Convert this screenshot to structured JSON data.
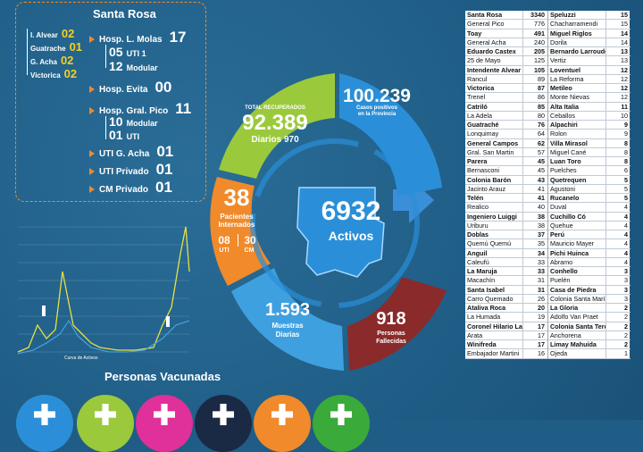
{
  "hospital_box": {
    "title": "Santa Rosa",
    "municipalities": [
      {
        "name": "I. Alvear",
        "count": "02"
      },
      {
        "name": "Guatrache",
        "count": "01"
      },
      {
        "name": "G. Acha",
        "count": "02"
      },
      {
        "name": "Victorica",
        "count": "02"
      }
    ],
    "molas": {
      "label": "Hosp. L. Molas",
      "count": "17",
      "uti": "05",
      "uti_label": "UTI 1",
      "modular": "12",
      "modular_label": "Modular"
    },
    "evita": {
      "label": "Hosp. Evita",
      "count": "00"
    },
    "pico": {
      "label": "Hosp. Gral. Pico",
      "count": "11",
      "modular": "10",
      "modular_label": "Modular",
      "uti": "01",
      "uti_label": "UTI"
    },
    "uti_acha": {
      "label": "UTI G. Acha",
      "count": "01"
    },
    "uti_privado": {
      "label": "UTI Privado",
      "count": "01"
    },
    "cm_privado": {
      "label": "CM Privado",
      "count": "01"
    }
  },
  "chart": {
    "label": "Curva de Activos"
  },
  "center": {
    "value": "6932",
    "label": "Activos"
  },
  "segments": {
    "recuperados": {
      "label": "TOTAL RECUPERADOS",
      "value": "92.389",
      "daily_label": "Diarios",
      "daily_value": "970"
    },
    "positivos": {
      "value": "100.239",
      "label1": "Casos positivos",
      "label2": "en la Provincia"
    },
    "internados": {
      "value": "38",
      "label1": "Pacientes",
      "label2": "Internados",
      "uti_value": "08",
      "uti_label": "UTI",
      "cm_value": "30",
      "cm_label": "CM"
    },
    "muestras": {
      "value": "1.593",
      "label1": "Muestras",
      "label2": "Diarias"
    },
    "fallecidos": {
      "value": "918",
      "label1": "Personas",
      "label2": "Fallecidas"
    }
  },
  "vaccinated": {
    "title": "Personas Vacunadas"
  },
  "colors": {
    "green": "#9bc93c",
    "blue": "#2a8fd8",
    "orange": "#f08a2a",
    "lightblue": "#3fa0e0",
    "red": "#8b2a2a",
    "background": "#1f5d86"
  },
  "table": {
    "left": [
      {
        "name": "Santa Rosa",
        "value": "3340",
        "bold": true
      },
      {
        "name": "General Pico",
        "value": "776"
      },
      {
        "name": "Toay",
        "value": "491",
        "bold": true
      },
      {
        "name": "General Acha",
        "value": "240"
      },
      {
        "name": "Eduardo Castex",
        "value": "205",
        "bold": true
      },
      {
        "name": "25 de Mayo",
        "value": "125"
      },
      {
        "name": "Intendente Alvear",
        "value": "105",
        "bold": true
      },
      {
        "name": "Rancul",
        "value": "89"
      },
      {
        "name": "Victorica",
        "value": "87",
        "bold": true
      },
      {
        "name": "Trenel",
        "value": "86"
      },
      {
        "name": "Catriló",
        "value": "85",
        "bold": true
      },
      {
        "name": "La Adela",
        "value": "80"
      },
      {
        "name": "Guatraché",
        "value": "76",
        "bold": true
      },
      {
        "name": "Lonquimay",
        "value": "64"
      },
      {
        "name": "General Campos",
        "value": "62",
        "bold": true
      },
      {
        "name": "Gral. San Martin",
        "value": "57"
      },
      {
        "name": "Parera",
        "value": "45",
        "bold": true
      },
      {
        "name": "Bernasconi",
        "value": "45"
      },
      {
        "name": "Colonia Barón",
        "value": "43",
        "bold": true
      },
      {
        "name": "Jacinto Arauz",
        "value": "41"
      },
      {
        "name": "Telén",
        "value": "41",
        "bold": true
      },
      {
        "name": "Realico",
        "value": "40"
      },
      {
        "name": "Ingeniero Luiggi",
        "value": "38",
        "bold": true
      },
      {
        "name": "Uriburu",
        "value": "38"
      },
      {
        "name": "Doblas",
        "value": "37",
        "bold": true
      },
      {
        "name": "Quemú Quemú",
        "value": "35"
      },
      {
        "name": "Anguil",
        "value": "34",
        "bold": true
      },
      {
        "name": "Caleufú",
        "value": "33"
      },
      {
        "name": "La Maruja",
        "value": "33",
        "bold": true
      },
      {
        "name": "Macachín",
        "value": "31"
      },
      {
        "name": "Santa Isabel",
        "value": "31",
        "bold": true
      },
      {
        "name": "Carro Quemado",
        "value": "26"
      },
      {
        "name": "Ataliva Roca",
        "value": "20",
        "bold": true
      },
      {
        "name": "La Humada",
        "value": "19"
      },
      {
        "name": "Coronel Hilario Lagos",
        "value": "17",
        "bold": true
      },
      {
        "name": "Arata",
        "value": "17"
      },
      {
        "name": "Winifreda",
        "value": "17",
        "bold": true
      },
      {
        "name": "Embajador Martini",
        "value": "16"
      }
    ],
    "right": [
      {
        "name": "Speluzzi",
        "value": "15",
        "bold": true
      },
      {
        "name": "Chacharramendi",
        "value": "15"
      },
      {
        "name": "Miguel Riglos",
        "value": "14",
        "bold": true
      },
      {
        "name": "Dorila",
        "value": "14"
      },
      {
        "name": "Bernardo Larroudé",
        "value": "13",
        "bold": true
      },
      {
        "name": "Vertiz",
        "value": "13"
      },
      {
        "name": "Loventuel",
        "value": "12",
        "bold": true
      },
      {
        "name": "La Reforma",
        "value": "12"
      },
      {
        "name": "Metileo",
        "value": "12",
        "bold": true
      },
      {
        "name": "Monte Nievas",
        "value": "12"
      },
      {
        "name": "Alta Italia",
        "value": "11",
        "bold": true
      },
      {
        "name": "Ceballos",
        "value": "10"
      },
      {
        "name": "Alpachiri",
        "value": "9",
        "bold": true
      },
      {
        "name": "Rolon",
        "value": "9"
      },
      {
        "name": "Villa Mirasol",
        "value": "8",
        "bold": true
      },
      {
        "name": "Miguel Cané",
        "value": "8"
      },
      {
        "name": "Luan Toro",
        "value": "8",
        "bold": true
      },
      {
        "name": "Puelches",
        "value": "6"
      },
      {
        "name": "Quetrequen",
        "value": "5",
        "bold": true
      },
      {
        "name": "Agustoni",
        "value": "5"
      },
      {
        "name": "Rucanelo",
        "value": "5",
        "bold": true
      },
      {
        "name": "Duval",
        "value": "4"
      },
      {
        "name": "Cuchillo Có",
        "value": "4",
        "bold": true
      },
      {
        "name": "Quehue",
        "value": "4"
      },
      {
        "name": "Perú",
        "value": "4",
        "bold": true
      },
      {
        "name": "Mauricio Mayer",
        "value": "4"
      },
      {
        "name": "Pichi Huinca",
        "value": "4",
        "bold": true
      },
      {
        "name": "Abramo",
        "value": "4"
      },
      {
        "name": "Conhello",
        "value": "3",
        "bold": true
      },
      {
        "name": "Puelén",
        "value": "3"
      },
      {
        "name": "Casa de Piedra",
        "value": "3",
        "bold": true
      },
      {
        "name": "Colonia Santa María",
        "value": "3"
      },
      {
        "name": "La Gloria",
        "value": "2",
        "bold": true
      },
      {
        "name": "Adolfo Van Praet",
        "value": "2"
      },
      {
        "name": "Colonia Santa Teresa",
        "value": "2",
        "bold": true
      },
      {
        "name": "Anchorena",
        "value": "2"
      },
      {
        "name": "Limay Mahuida",
        "value": "2",
        "bold": true
      },
      {
        "name": "Ojeda",
        "value": "1"
      }
    ]
  }
}
